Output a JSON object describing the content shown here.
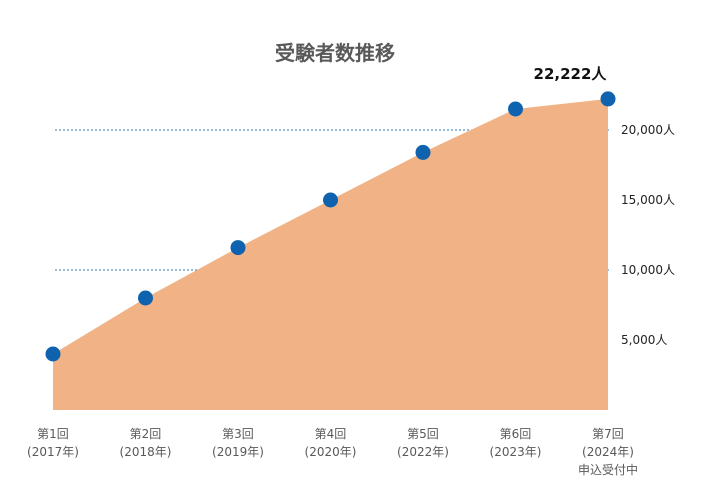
{
  "chart_data": {
    "type": "area",
    "title": "受験者数推移",
    "categories": [
      "第1回\n(2017年)",
      "第2回\n(2018年)",
      "第3回\n(2019年)",
      "第4回\n(2020年)",
      "第5回\n(2022年)",
      "第6回\n(2023年)",
      "第7回\n(2024年)\n申込受付中"
    ],
    "series": [
      {
        "values": [
          4000,
          8000,
          11600,
          15000,
          18400,
          21500,
          22222
        ]
      }
    ],
    "ylim": [
      0,
      25000
    ],
    "yticks": [
      {
        "value": 5000,
        "label": "5,000人",
        "gridline": false
      },
      {
        "value": 10000,
        "label": "10,000人",
        "gridline": true
      },
      {
        "value": 15000,
        "label": "15,000人",
        "gridline": false
      },
      {
        "value": 20000,
        "label": "20,000人",
        "gridline": true
      }
    ],
    "annotations": [
      {
        "category_index": 6,
        "text": "22,222人"
      }
    ],
    "xlabel": "",
    "ylabel": "",
    "grid": "dashed horizontal lines at 10,000 and 20,000",
    "colors": {
      "area": "#f1b386",
      "marker": "#0f62ad",
      "gridline": "#2e75b6"
    }
  }
}
